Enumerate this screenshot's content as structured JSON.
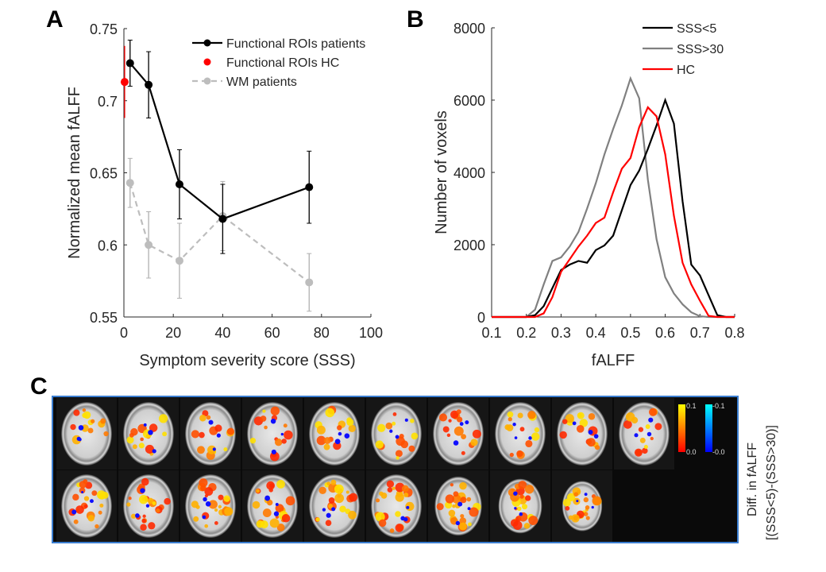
{
  "chart_data": [
    {
      "panel": "A",
      "type": "line",
      "xlabel": "Symptom severity score (SSS)",
      "ylabel": "Normalized mean fALFF",
      "xlim": [
        0,
        100
      ],
      "ylim": [
        0.55,
        0.75
      ],
      "xticks": [
        "0",
        "20",
        "40",
        "60",
        "80",
        "100"
      ],
      "yticks": [
        "0.55",
        "0.6",
        "0.65",
        "0.7",
        "0.75"
      ],
      "legend_placement": "top-right",
      "series": [
        {
          "name": "Functional ROIs patients",
          "color": "#000000",
          "style": "solid",
          "x": [
            2.5,
            10,
            22.5,
            40,
            75
          ],
          "y": [
            0.726,
            0.711,
            0.642,
            0.618,
            0.64
          ],
          "err": [
            0.016,
            0.023,
            0.024,
            0.024,
            0.025
          ]
        },
        {
          "name": "Functional ROIs HC",
          "color": "#ff0000",
          "style": "none",
          "x": [
            0.3
          ],
          "y": [
            0.713
          ],
          "err": [
            0.025
          ]
        },
        {
          "name": "WM patients",
          "color": "#bdbdbd",
          "style": "dashed",
          "x": [
            2.5,
            10,
            22.5,
            40,
            75
          ],
          "y": [
            0.643,
            0.6,
            0.589,
            0.62,
            0.574
          ],
          "err": [
            0.017,
            0.023,
            0.026,
            0.024,
            0.02
          ]
        }
      ]
    },
    {
      "panel": "B",
      "type": "line",
      "xlabel": "fALFF",
      "ylabel": "Number of voxels",
      "xlim": [
        0.1,
        0.8
      ],
      "ylim": [
        0,
        8000
      ],
      "xticks": [
        "0.1",
        "0.2",
        "0.3",
        "0.4",
        "0.5",
        "0.6",
        "0.7",
        "0.8"
      ],
      "yticks": [
        "0",
        "2000",
        "4000",
        "6000",
        "8000"
      ],
      "legend_placement": "top-right",
      "x": [
        0.1,
        0.2,
        0.225,
        0.25,
        0.275,
        0.3,
        0.325,
        0.35,
        0.375,
        0.4,
        0.425,
        0.45,
        0.475,
        0.5,
        0.525,
        0.55,
        0.575,
        0.6,
        0.625,
        0.65,
        0.675,
        0.7,
        0.725,
        0.75,
        0.775,
        0.8
      ],
      "series": [
        {
          "name": "SSS<5",
          "color": "#000000",
          "values": [
            0,
            0,
            50,
            300,
            800,
            1300,
            1450,
            1550,
            1500,
            1850,
            1980,
            2250,
            2950,
            3650,
            4050,
            4650,
            5300,
            6000,
            5350,
            3200,
            1450,
            1150,
            600,
            50,
            0,
            0
          ]
        },
        {
          "name": "SSS>30",
          "color": "#808080",
          "values": [
            0,
            0,
            200,
            900,
            1550,
            1650,
            1950,
            2350,
            3000,
            3700,
            4500,
            5200,
            5850,
            6600,
            6050,
            3800,
            2150,
            1100,
            650,
            350,
            130,
            20,
            0,
            0,
            0,
            0
          ]
        },
        {
          "name": "HC",
          "color": "#ff0000",
          "values": [
            0,
            0,
            0,
            100,
            550,
            1250,
            1600,
            1950,
            2250,
            2600,
            2750,
            3450,
            4100,
            4400,
            5250,
            5800,
            5550,
            4500,
            2800,
            1500,
            900,
            450,
            30,
            0,
            0,
            0
          ]
        }
      ]
    }
  ],
  "panel_labels": [
    "A",
    "B",
    "C"
  ],
  "panel_c": {
    "colorbar_pos": {
      "max": "0.1",
      "min": "0.0",
      "colors": [
        "#ff0000",
        "#ff8000",
        "#ffff00"
      ]
    },
    "colorbar_neg": {
      "max": "-0.1",
      "min": "-0.0",
      "colors": [
        "#0000ff",
        "#0080ff",
        "#00ffff"
      ]
    },
    "side_label_1": "Diff. in fALFF",
    "side_label_2": "[(SSS<5)-(SSS>30)]",
    "slices_row1": 10,
    "slices_row2": 9
  }
}
